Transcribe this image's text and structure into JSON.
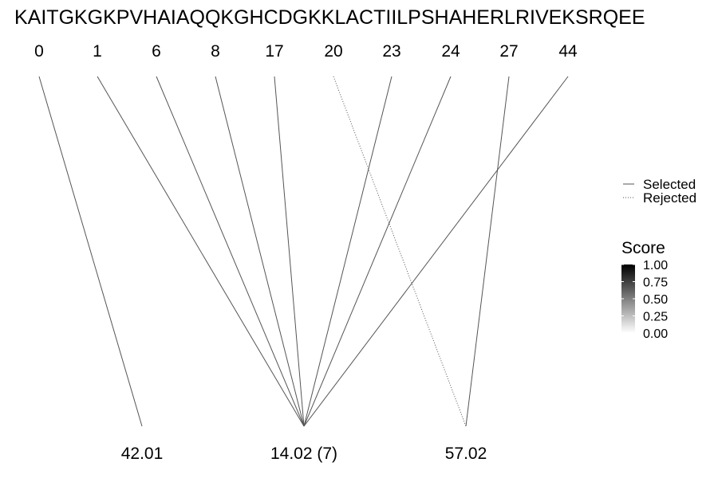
{
  "sequence": "KAITGKGKPVHAIAQQKGHCDGKKLACTIILPSHAHERLRIVEKSRQEE",
  "positions": [
    "0",
    "1",
    "6",
    "8",
    "17",
    "20",
    "23",
    "24",
    "27",
    "44"
  ],
  "masses": [
    "42.01",
    "14.02 (7)",
    "57.02"
  ],
  "links": [
    {
      "from": 0,
      "to": 0,
      "status": "selected",
      "score": 0.6
    },
    {
      "from": 1,
      "to": 1,
      "status": "selected",
      "score": 0.6
    },
    {
      "from": 2,
      "to": 1,
      "status": "selected",
      "score": 0.6
    },
    {
      "from": 3,
      "to": 1,
      "status": "selected",
      "score": 0.6
    },
    {
      "from": 4,
      "to": 1,
      "status": "selected",
      "score": 0.6
    },
    {
      "from": 5,
      "to": 2,
      "status": "rejected",
      "score": 0.6
    },
    {
      "from": 6,
      "to": 1,
      "status": "selected",
      "score": 0.6
    },
    {
      "from": 7,
      "to": 1,
      "status": "selected",
      "score": 0.6
    },
    {
      "from": 8,
      "to": 2,
      "status": "selected",
      "score": 0.6
    },
    {
      "from": 9,
      "to": 1,
      "status": "selected",
      "score": 0.6
    }
  ],
  "legend": {
    "selected": "Selected",
    "rejected": "Rejected"
  },
  "score_legend": {
    "title": "Score",
    "ticks": [
      "1.00",
      "0.75",
      "0.50",
      "0.25",
      "0.00"
    ],
    "color_high": "#000000",
    "color_low": "#ffffff"
  },
  "line_color": "#555555"
}
